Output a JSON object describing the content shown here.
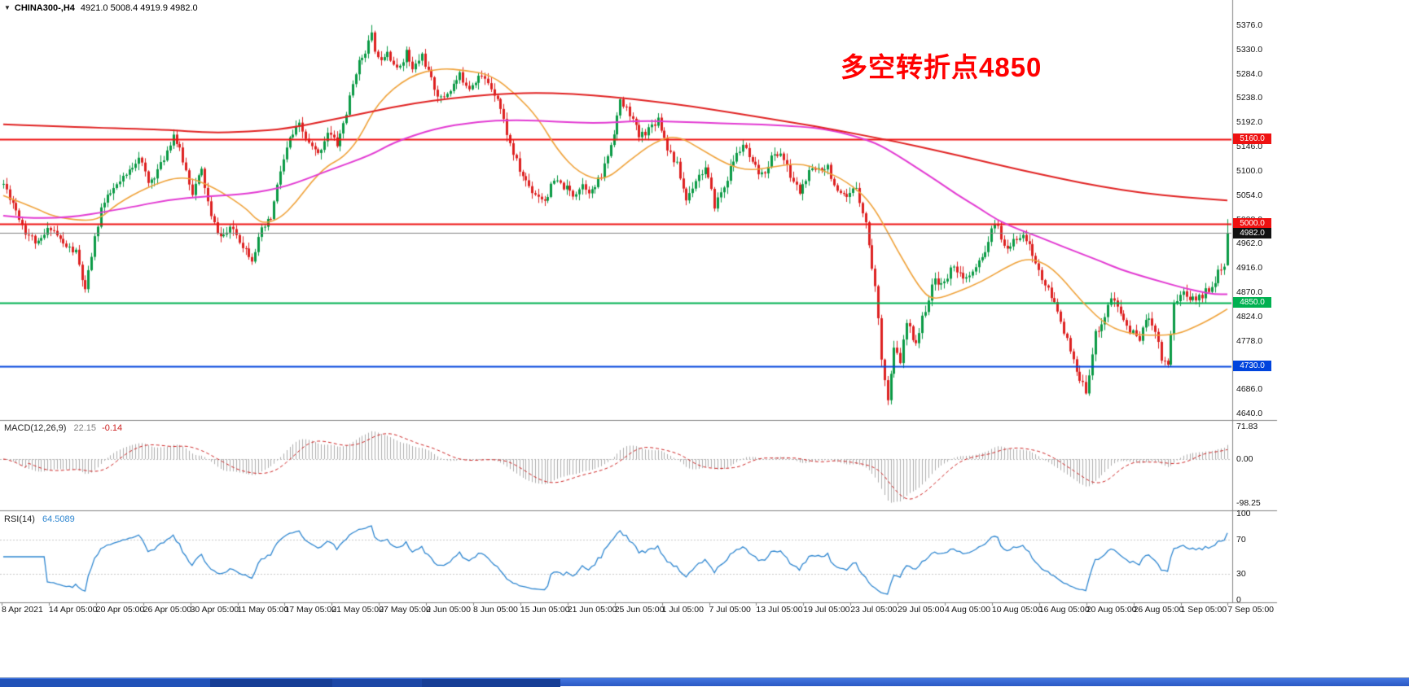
{
  "header": {
    "symbol": "CHINA300-,H4",
    "ohlc": "4921.0 5008.4 4919.9 4982.0"
  },
  "annotation": {
    "text": "多空转折点4850",
    "color": "#ff0000"
  },
  "colors": {
    "background": "#ffffff",
    "candle_up": "#0a9a44",
    "candle_down": "#dd2020",
    "separator": "#808080",
    "current_price_line": "#808080",
    "axis_text": "#141414"
  },
  "macd": {
    "label": "MACD(12,26,9)",
    "value_main": "22.15",
    "value_signal": "-0.14"
  },
  "rsi": {
    "label": "RSI(14)",
    "value": "64.5089"
  },
  "time_axis": {
    "labels": [
      "8 Apr 2021",
      "14 Apr 05:00",
      "20 Apr 05:00",
      "26 Apr 05:00",
      "30 Apr 05:00",
      "11 May 05:00",
      "17 May 05:00",
      "21 May 05:00",
      "27 May 05:00",
      "2 Jun 05:00",
      "8 Jun 05:00",
      "15 Jun 05:00",
      "21 Jun 05:00",
      "25 Jun 05:00",
      "1 Jul 05:00",
      "7 Jul 05:00",
      "13 Jul 05:00",
      "19 Jul 05:00",
      "23 Jul 05:00",
      "29 Jul 05:00",
      "4 Aug 05:00",
      "10 Aug 05:00",
      "16 Aug 05:00",
      "20 Aug 05:00",
      "26 Aug 05:00",
      "1 Sep 05:00",
      "7 Sep 05:00"
    ]
  },
  "chart_data": [
    {
      "id": "price",
      "type": "candlestick",
      "title": "CHINA300-,H4",
      "symbol": "CHINA300-",
      "timeframe": "H4",
      "visible_range": {
        "start": "8 Apr 2021",
        "end": "7 Sep 2021"
      },
      "last_candle": {
        "open": 4921.0,
        "high": 5008.4,
        "low": 4919.9,
        "close": 4982.0
      },
      "y_range": [
        4640,
        5376
      ],
      "y_tick_labels": [
        "5376.0",
        "5330.0",
        "5284.0",
        "5238.0",
        "5192.0",
        "5146.0",
        "5100.0",
        "5054.0",
        "5008.0",
        "4962.0",
        "4916.0",
        "4870.0",
        "4824.0",
        "4778.0",
        "4732.0",
        "4686.0",
        "4640.0"
      ],
      "num_candles": 390,
      "noise_seed": 11,
      "price_path_anchors": [
        [
          0,
          5075
        ],
        [
          3,
          5040
        ],
        [
          7,
          4985
        ],
        [
          11,
          4960
        ],
        [
          15,
          4995
        ],
        [
          19,
          4960
        ],
        [
          23,
          4945
        ],
        [
          26,
          4870
        ],
        [
          28,
          4940
        ],
        [
          31,
          5030
        ],
        [
          35,
          5065
        ],
        [
          39,
          5090
        ],
        [
          43,
          5130
        ],
        [
          46,
          5075
        ],
        [
          50,
          5110
        ],
        [
          54,
          5170
        ],
        [
          57,
          5120
        ],
        [
          60,
          5060
        ],
        [
          63,
          5100
        ],
        [
          66,
          5010
        ],
        [
          69,
          4975
        ],
        [
          73,
          4990
        ],
        [
          76,
          4960
        ],
        [
          79,
          4935
        ],
        [
          82,
          4985
        ],
        [
          85,
          5010
        ],
        [
          88,
          5100
        ],
        [
          91,
          5160
        ],
        [
          94,
          5185
        ],
        [
          97,
          5150
        ],
        [
          100,
          5130
        ],
        [
          103,
          5175
        ],
        [
          106,
          5150
        ],
        [
          109,
          5210
        ],
        [
          112,
          5290
        ],
        [
          115,
          5330
        ],
        [
          117,
          5355
        ],
        [
          119,
          5310
        ],
        [
          122,
          5330
        ],
        [
          125,
          5290
        ],
        [
          128,
          5325
        ],
        [
          130,
          5290
        ],
        [
          133,
          5320
        ],
        [
          136,
          5270
        ],
        [
          139,
          5235
        ],
        [
          142,
          5255
        ],
        [
          145,
          5280
        ],
        [
          148,
          5260
        ],
        [
          151,
          5280
        ],
        [
          154,
          5268
        ],
        [
          157,
          5240
        ],
        [
          161,
          5150
        ],
        [
          164,
          5100
        ],
        [
          168,
          5062
        ],
        [
          172,
          5045
        ],
        [
          175,
          5080
        ],
        [
          178,
          5070
        ],
        [
          181,
          5055
        ],
        [
          184,
          5075
        ],
        [
          187,
          5060
        ],
        [
          190,
          5090
        ],
        [
          193,
          5150
        ],
        [
          196,
          5230
        ],
        [
          199,
          5210
        ],
        [
          202,
          5165
        ],
        [
          205,
          5180
        ],
        [
          208,
          5200
        ],
        [
          211,
          5145
        ],
        [
          214,
          5110
        ],
        [
          217,
          5045
        ],
        [
          220,
          5085
        ],
        [
          223,
          5105
        ],
        [
          226,
          5035
        ],
        [
          229,
          5070
        ],
        [
          232,
          5120
        ],
        [
          235,
          5150
        ],
        [
          238,
          5110
        ],
        [
          241,
          5090
        ],
        [
          244,
          5125
        ],
        [
          247,
          5135
        ],
        [
          250,
          5090
        ],
        [
          253,
          5060
        ],
        [
          256,
          5095
        ],
        [
          259,
          5105
        ],
        [
          262,
          5110
        ],
        [
          265,
          5055
        ],
        [
          268,
          5045
        ],
        [
          271,
          5070
        ],
        [
          274,
          5000
        ],
        [
          277,
          4880
        ],
        [
          279,
          4750
        ],
        [
          281,
          4665
        ],
        [
          283,
          4760
        ],
        [
          285,
          4740
        ],
        [
          287,
          4810
        ],
        [
          290,
          4775
        ],
        [
          293,
          4840
        ],
        [
          296,
          4895
        ],
        [
          299,
          4885
        ],
        [
          302,
          4925
        ],
        [
          305,
          4890
        ],
        [
          308,
          4905
        ],
        [
          311,
          4935
        ],
        [
          314,
          4985
        ],
        [
          316,
          5000
        ],
        [
          318,
          4950
        ],
        [
          321,
          4965
        ],
        [
          324,
          4985
        ],
        [
          327,
          4940
        ],
        [
          330,
          4895
        ],
        [
          333,
          4860
        ],
        [
          336,
          4820
        ],
        [
          339,
          4755
        ],
        [
          342,
          4700
        ],
        [
          344,
          4685
        ],
        [
          347,
          4790
        ],
        [
          350,
          4825
        ],
        [
          352,
          4860
        ],
        [
          355,
          4830
        ],
        [
          358,
          4795
        ],
        [
          361,
          4785
        ],
        [
          364,
          4825
        ],
        [
          366,
          4800
        ],
        [
          368,
          4745
        ],
        [
          370,
          4735
        ],
        [
          372,
          4850
        ],
        [
          375,
          4870
        ],
        [
          378,
          4855
        ],
        [
          381,
          4865
        ],
        [
          384,
          4885
        ],
        [
          386,
          4905
        ],
        [
          388,
          4918
        ],
        [
          389,
          4982
        ]
      ],
      "overrides": [
        {
          "i": 117,
          "h": 5376.4
        },
        {
          "i": 281,
          "l": 4656.0
        },
        {
          "i": 389,
          "o": 4921.0,
          "h": 5008.4,
          "l": 4919.9,
          "c": 4982.0
        }
      ],
      "horizontal_levels": [
        {
          "price": 5160.0,
          "label": "5160.0",
          "color": "#ee1111"
        },
        {
          "price": 5000.0,
          "label": "5000.0",
          "color": "#ee1111"
        },
        {
          "price": 4850.0,
          "label": "4850.0",
          "color": "#00b050"
        },
        {
          "price": 4730.0,
          "label": "4730.0",
          "color": "#0044dd"
        }
      ],
      "current_price": 4982.0,
      "current_price_label": "4982.0",
      "moving_averages": [
        {
          "name": "ma-fast",
          "color": "#efa23a",
          "width": 1.6,
          "anchors": [
            [
              0,
              5053
            ],
            [
              10,
              5030
            ],
            [
              16,
              5013
            ],
            [
              26,
              5005
            ],
            [
              31,
              5010
            ],
            [
              36,
              5037
            ],
            [
              46,
              5070
            ],
            [
              57,
              5092
            ],
            [
              67,
              5069
            ],
            [
              77,
              5030
            ],
            [
              80,
              5010
            ],
            [
              83,
              5000
            ],
            [
              88,
              5010
            ],
            [
              93,
              5040
            ],
            [
              98,
              5080
            ],
            [
              103,
              5110
            ],
            [
              108,
              5125
            ],
            [
              113,
              5160
            ],
            [
              119,
              5230
            ],
            [
              129,
              5280
            ],
            [
              139,
              5295
            ],
            [
              147,
              5290
            ],
            [
              155,
              5282
            ],
            [
              163,
              5245
            ],
            [
              170,
              5200
            ],
            [
              176,
              5140
            ],
            [
              183,
              5095
            ],
            [
              191,
              5080
            ],
            [
              199,
              5120
            ],
            [
              207,
              5155
            ],
            [
              214,
              5168
            ],
            [
              222,
              5140
            ],
            [
              230,
              5112
            ],
            [
              237,
              5100
            ],
            [
              245,
              5108
            ],
            [
              253,
              5115
            ],
            [
              261,
              5100
            ],
            [
              268,
              5080
            ],
            [
              276,
              5040
            ],
            [
              284,
              4950
            ],
            [
              292,
              4870
            ],
            [
              296,
              4855
            ],
            [
              303,
              4870
            ],
            [
              311,
              4890
            ],
            [
              318,
              4915
            ],
            [
              325,
              4935
            ],
            [
              331,
              4925
            ],
            [
              336,
              4900
            ],
            [
              343,
              4850
            ],
            [
              351,
              4805
            ],
            [
              359,
              4790
            ],
            [
              366,
              4788
            ],
            [
              373,
              4790
            ],
            [
              379,
              4805
            ],
            [
              384,
              4820
            ],
            [
              389,
              4838
            ]
          ]
        },
        {
          "name": "ma-medium",
          "color": "#e23ad2",
          "width": 2,
          "anchors": [
            [
              0,
              5015
            ],
            [
              15,
              5005
            ],
            [
              40,
              5030
            ],
            [
              52,
              5045
            ],
            [
              65,
              5052
            ],
            [
              78,
              5056
            ],
            [
              90,
              5070
            ],
            [
              103,
              5100
            ],
            [
              117,
              5130
            ],
            [
              124,
              5154
            ],
            [
              137,
              5180
            ],
            [
              150,
              5193
            ],
            [
              163,
              5197
            ],
            [
              176,
              5193
            ],
            [
              189,
              5190
            ],
            [
              202,
              5195
            ],
            [
              215,
              5193
            ],
            [
              228,
              5190
            ],
            [
              241,
              5188
            ],
            [
              254,
              5184
            ],
            [
              261,
              5179
            ],
            [
              268,
              5170
            ],
            [
              277,
              5154
            ],
            [
              284,
              5130
            ],
            [
              290,
              5107
            ],
            [
              297,
              5080
            ],
            [
              303,
              5055
            ],
            [
              310,
              5030
            ],
            [
              316,
              5006
            ],
            [
              323,
              4988
            ],
            [
              329,
              4975
            ],
            [
              336,
              4958
            ],
            [
              342,
              4944
            ],
            [
              349,
              4928
            ],
            [
              355,
              4913
            ],
            [
              362,
              4900
            ],
            [
              368,
              4890
            ],
            [
              375,
              4878
            ],
            [
              381,
              4870
            ],
            [
              385,
              4866
            ],
            [
              389,
              4866
            ]
          ]
        },
        {
          "name": "ma-slow",
          "color": "#e02222",
          "width": 2,
          "anchors": [
            [
              0,
              5188
            ],
            [
              26,
              5182
            ],
            [
              52,
              5178
            ],
            [
              65,
              5172
            ],
            [
              78,
              5174
            ],
            [
              90,
              5180
            ],
            [
              103,
              5195
            ],
            [
              117,
              5212
            ],
            [
              130,
              5228
            ],
            [
              143,
              5238
            ],
            [
              155,
              5245
            ],
            [
              168,
              5248
            ],
            [
              181,
              5246
            ],
            [
              194,
              5240
            ],
            [
              206,
              5232
            ],
            [
              219,
              5222
            ],
            [
              232,
              5210
            ],
            [
              245,
              5197
            ],
            [
              258,
              5185
            ],
            [
              271,
              5170
            ],
            [
              284,
              5155
            ],
            [
              297,
              5138
            ],
            [
              310,
              5120
            ],
            [
              323,
              5102
            ],
            [
              336,
              5085
            ],
            [
              349,
              5070
            ],
            [
              362,
              5058
            ],
            [
              375,
              5050
            ],
            [
              389,
              5044
            ]
          ]
        }
      ]
    },
    {
      "id": "macd",
      "type": "histogram+line",
      "label": "MACD(12,26,9)",
      "params": [
        12,
        26,
        9
      ],
      "current_main": 22.15,
      "current_signal": -0.14,
      "y_ticks": [
        71.83,
        0.0,
        -98.25
      ],
      "y_tick_labels": [
        "71.83",
        "0.00",
        "-98.25"
      ],
      "colors": {
        "histogram": "#adadad",
        "signal": "#cc2222"
      },
      "derived_from": "price.close"
    },
    {
      "id": "rsi",
      "type": "line",
      "label": "RSI(14)",
      "period": 14,
      "current": 64.5089,
      "y_ticks": [
        100,
        70,
        30,
        0
      ],
      "y_tick_labels": [
        "100",
        "70",
        "30",
        "0"
      ],
      "levels": [
        70,
        30
      ],
      "color": "#2e86d0",
      "derived_from": "price.close"
    }
  ]
}
